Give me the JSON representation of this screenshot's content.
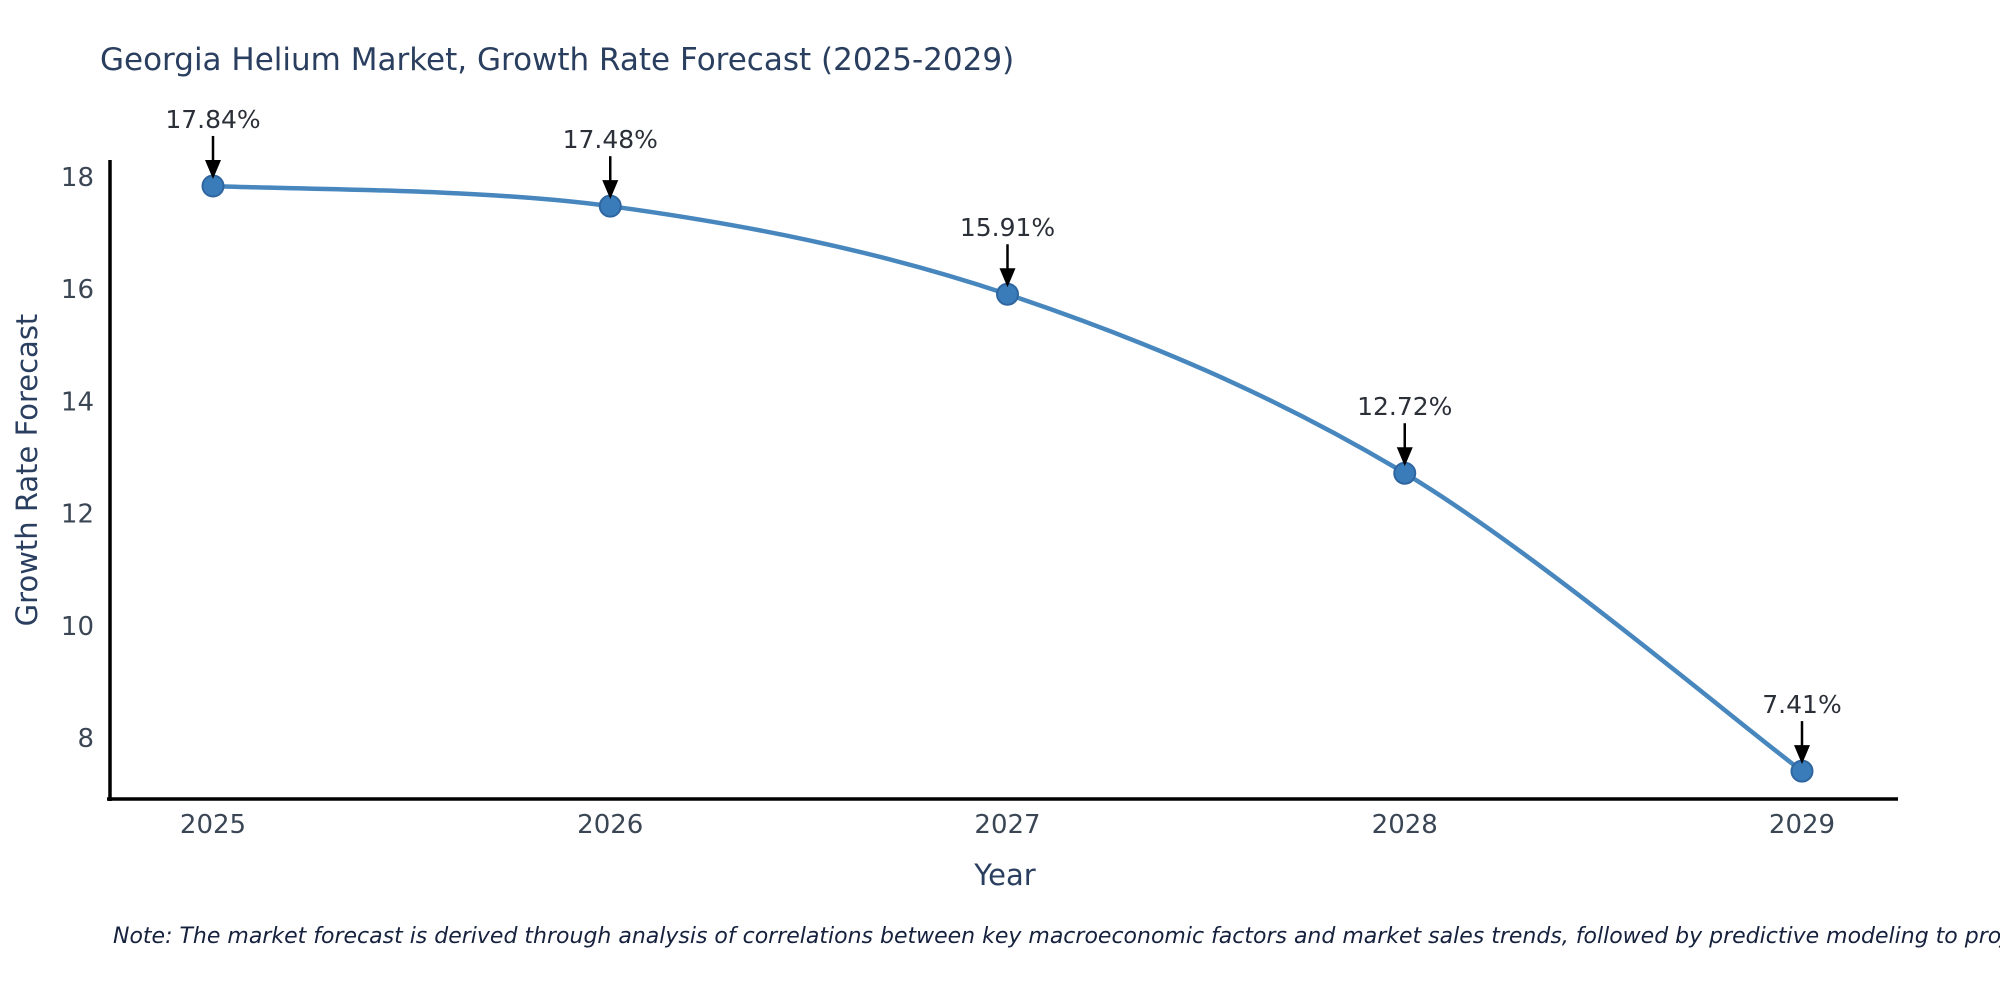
{
  "page": {
    "background": "#ffffff"
  },
  "chart_data": {
    "type": "line",
    "title": "Georgia Helium Market, Growth Rate Forecast (2025-2029)",
    "xlabel": "Year",
    "ylabel": "Growth Rate Forecast",
    "x": [
      2025,
      2026,
      2027,
      2028,
      2029
    ],
    "series": [
      {
        "name": "Growth Rate Forecast",
        "values": [
          17.84,
          17.48,
          15.91,
          12.72,
          7.41
        ]
      }
    ],
    "point_labels": [
      "17.84%",
      "17.48%",
      "15.91%",
      "12.72%",
      "7.41%"
    ],
    "y_ticks": [
      8,
      10,
      12,
      14,
      16,
      18
    ],
    "ylim": [
      6.93,
      18.3
    ],
    "grid": false,
    "legend_position": "none",
    "line_color": "#4787be",
    "marker_color": "#3a7cba",
    "marker_edge_color": "#2f66a0",
    "annotation_arrow_color": "#000000"
  },
  "note": {
    "text": "Note: The market forecast is derived through analysis of correlations between key macroeconomic factors and market sales trends, followed by predictive modeling to project future sales"
  },
  "colors": {
    "title": "#2a3f5f",
    "axis_label": "#2a3f5f",
    "tick": "#3b4655",
    "annotation": "#2a2f38",
    "axis_line": "#000000",
    "note": "#16213e"
  }
}
